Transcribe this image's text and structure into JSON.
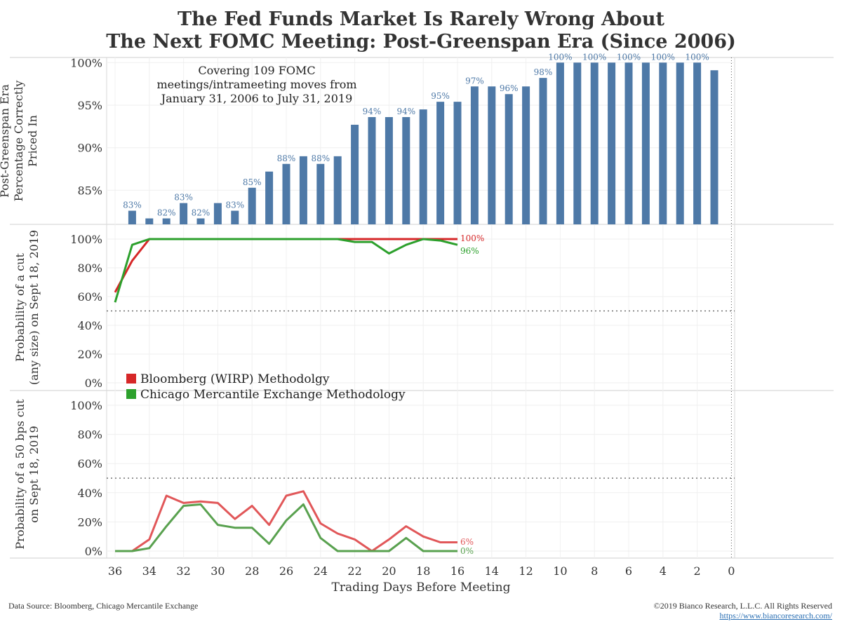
{
  "title": {
    "line1": "The Fed Funds Market Is Rarely Wrong About",
    "line2": "The Next FOMC Meeting: Post-Greenspan Era (Since 2006)"
  },
  "footer": {
    "source": "Data Source: Bloomberg, Chicago Mercantile Exchange",
    "copyright": "©2019 Bianco Research, L.L.C. All Rights Reserved",
    "url": "https://www.biancoresearch.com/"
  },
  "colors": {
    "bar": "#4e79a7",
    "wirp": "#d62728",
    "cme": "#2ca02c",
    "wirp_50": "#e15759",
    "cme_50": "#59a14f",
    "text": "#333333"
  },
  "chart_data": [
    {
      "type": "bar",
      "ylabel_lines": [
        "Post-Greenspan Era",
        "Percentage Correctly",
        "Priced In"
      ],
      "annotation_lines": [
        "Covering 109 FOMC",
        "meetings/intrameeting moves from",
        "January 31, 2006 to July 31, 2019"
      ],
      "x": [
        35,
        34,
        33,
        32,
        31,
        30,
        29,
        28,
        27,
        26,
        25,
        24,
        23,
        22,
        21,
        20,
        19,
        18,
        17,
        16,
        15,
        14,
        13,
        12,
        11,
        10,
        9,
        8,
        7,
        6,
        5,
        4,
        3,
        2,
        1
      ],
      "values": [
        82.6,
        81.7,
        81.7,
        83.5,
        81.7,
        83.5,
        82.6,
        85.3,
        87.2,
        88.1,
        89.0,
        88.1,
        89.0,
        92.7,
        93.6,
        93.6,
        93.6,
        94.5,
        95.4,
        95.4,
        97.2,
        97.2,
        96.3,
        97.2,
        98.2,
        100,
        100,
        100,
        100,
        100,
        100,
        100,
        100,
        100,
        99.1
      ],
      "data_labels": [
        "83%",
        "",
        "82%",
        "83%",
        "82%",
        "",
        "83%",
        "85%",
        "",
        "88%",
        "",
        "88%",
        "",
        "",
        "94%",
        "",
        "94%",
        "",
        "95%",
        "",
        "97%",
        "",
        "96%",
        "",
        "98%",
        "100%",
        "",
        "100%",
        "",
        "100%",
        "",
        "100%",
        "",
        "100%",
        ""
      ],
      "yticks": [
        "85%",
        "90%",
        "95%",
        "100%"
      ],
      "ytick_values": [
        85,
        90,
        95,
        100
      ],
      "ylim": [
        81,
        100.6
      ],
      "xlim": [
        36.5,
        -1
      ]
    },
    {
      "type": "line",
      "ylabel_lines": [
        "Probability of a cut",
        "(any size) on Sept 18, 2019"
      ],
      "x": [
        36,
        35,
        34,
        33,
        32,
        31,
        30,
        29,
        28,
        27,
        26,
        25,
        24,
        23,
        22,
        21,
        20,
        19,
        18,
        17,
        16
      ],
      "series": [
        {
          "name": "Bloomberg (WIRP) Methodolgy",
          "values": [
            63,
            85,
            100,
            100,
            100,
            100,
            100,
            100,
            100,
            100,
            100,
            100,
            100,
            100,
            100,
            100,
            100,
            100,
            100,
            100,
            100
          ]
        },
        {
          "name": "Chicago Mercantile Exchange Methodology",
          "values": [
            56,
            96,
            100,
            100,
            100,
            100,
            100,
            100,
            100,
            100,
            100,
            100,
            100,
            100,
            98,
            98,
            90,
            96,
            100,
            99,
            96
          ]
        }
      ],
      "end_labels": [
        "100%",
        "96%"
      ],
      "yticks": [
        "0%",
        "20%",
        "40%",
        "60%",
        "80%",
        "100%"
      ],
      "ytick_values": [
        0,
        20,
        40,
        60,
        80,
        100
      ],
      "ylim": [
        0,
        100
      ],
      "reference_line": 50,
      "xlim": [
        36.5,
        -1
      ]
    },
    {
      "type": "line",
      "ylabel_lines": [
        "Probability of a 50 bps cut",
        "on Sept 18, 2019"
      ],
      "xlabel": "Trading Days Before Meeting",
      "x": [
        36,
        35,
        34,
        33,
        32,
        31,
        30,
        29,
        28,
        27,
        26,
        25,
        24,
        23,
        22,
        21,
        20,
        19,
        18,
        17,
        16
      ],
      "series": [
        {
          "values": [
            0,
            0,
            8,
            38,
            33,
            34,
            33,
            22,
            31,
            18,
            38,
            41,
            19,
            12,
            8,
            0,
            8,
            17,
            10,
            6,
            6
          ]
        },
        {
          "values": [
            0,
            0,
            2,
            17,
            31,
            32,
            18,
            16,
            16,
            5,
            21,
            32,
            9,
            0,
            0,
            0,
            0,
            9,
            0,
            0,
            0
          ]
        }
      ],
      "end_labels": [
        "6%",
        "0%"
      ],
      "yticks": [
        "0%",
        "20%",
        "40%",
        "60%",
        "80%",
        "100%"
      ],
      "ytick_values": [
        0,
        20,
        40,
        60,
        80,
        100
      ],
      "ylim": [
        0,
        100
      ],
      "reference_line": 50,
      "xticks": [
        "36",
        "34",
        "32",
        "30",
        "28",
        "26",
        "24",
        "22",
        "20",
        "18",
        "16",
        "14",
        "12",
        "10",
        "8",
        "6",
        "4",
        "2",
        "0"
      ],
      "xtick_values": [
        36,
        34,
        32,
        30,
        28,
        26,
        24,
        22,
        20,
        18,
        16,
        14,
        12,
        10,
        8,
        6,
        4,
        2,
        0
      ],
      "xlim": [
        36.5,
        -1
      ]
    }
  ]
}
